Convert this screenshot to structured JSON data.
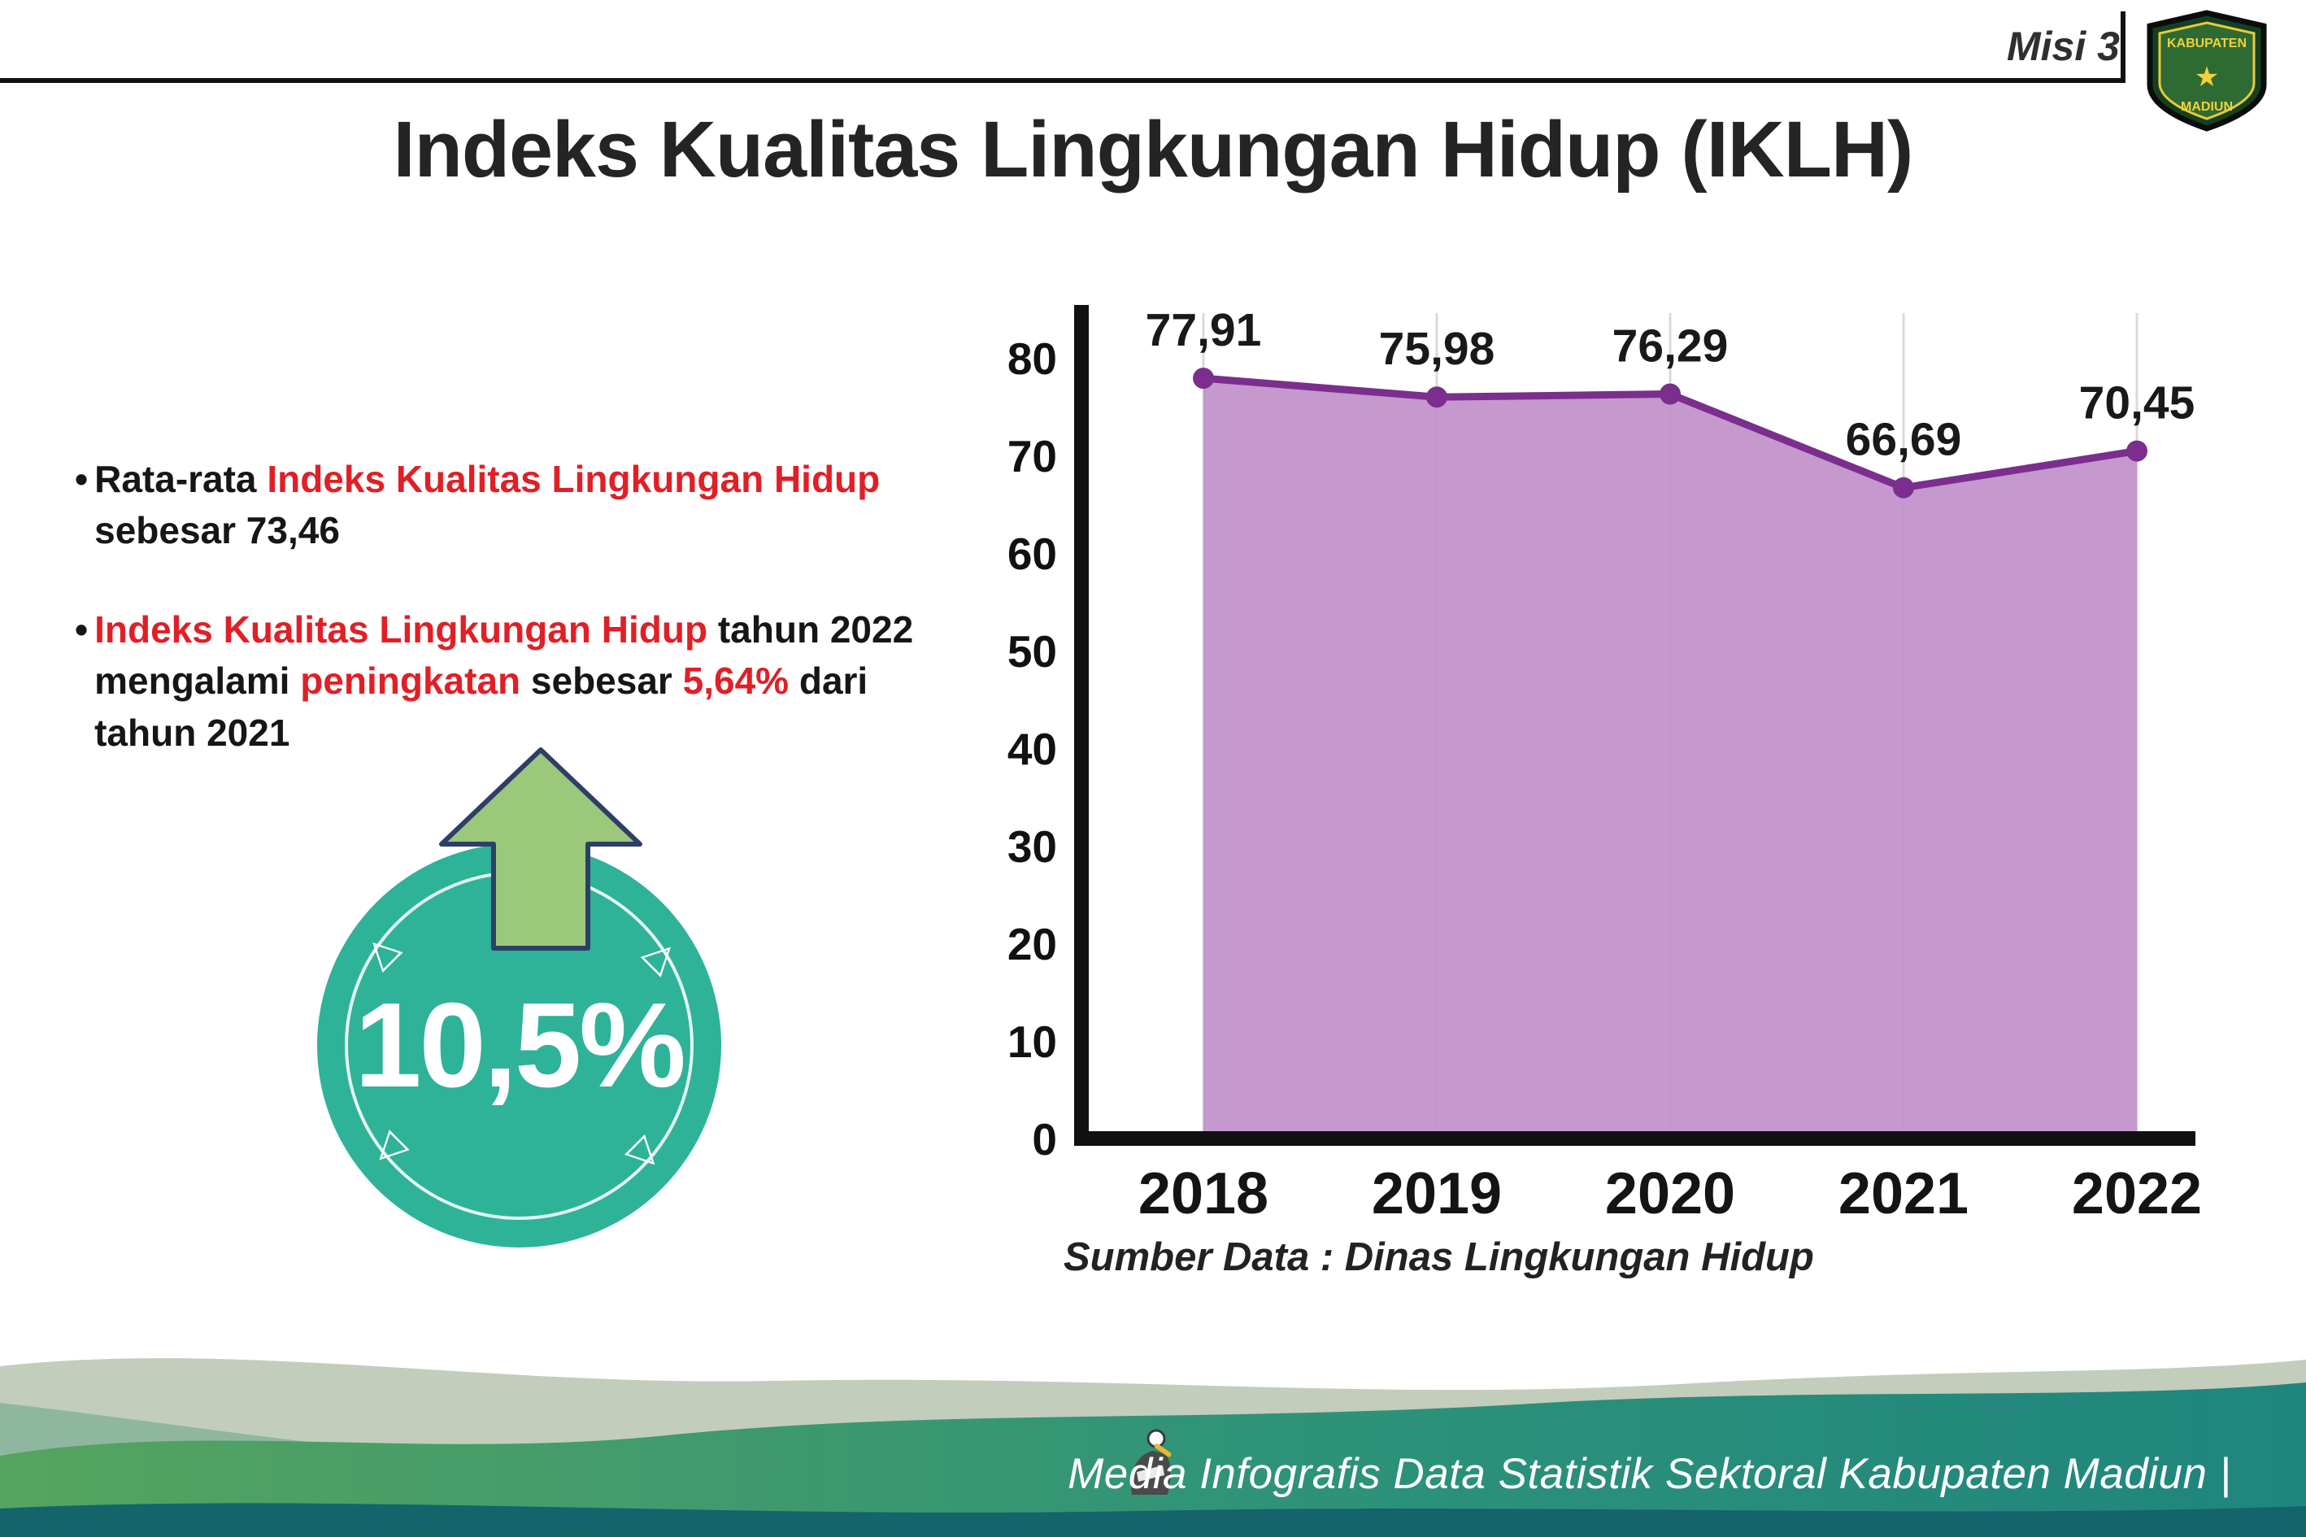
{
  "colors": {
    "red": "#e11f26",
    "ink": "#1d1d1d",
    "teal_badge": "#2eb398",
    "arrow_green": "#9cc87c",
    "arrow_outline": "#2d3f66",
    "purple_fill": "#c08fca",
    "purple_line": "#7b2e8e",
    "sage": "#c3cdbb",
    "green_left": "#56a45f",
    "teal_right": "#1f857e",
    "dark_teal": "#14646c"
  },
  "header": {
    "misi_label": "Misi 3",
    "title": "Indeks Kualitas Lingkungan Hidup (IKLH)"
  },
  "logo": {
    "top_text": "KABUPATEN",
    "bottom_text": "MADIUN",
    "star_glyph": "★"
  },
  "bullets": {
    "marker": "•",
    "b1": [
      {
        "t": "Rata-rata "
      },
      {
        "t": "Indeks Kualitas Lingkungan Hidup"
      },
      {
        "t": " sebesar 73,46"
      }
    ],
    "b2": [
      {
        "t": "Indeks Kualitas Lingkungan Hidup"
      },
      {
        "t": " tahun 2022 mengalami "
      },
      {
        "t": "peningkatan"
      },
      {
        "t": " sebesar "
      },
      {
        "t": "5,64%"
      },
      {
        "t": " dari tahun 2021"
      }
    ]
  },
  "badge": {
    "value": "10,5%",
    "triangle_glyph": "▷"
  },
  "chart_data": {
    "type": "area",
    "title": "Indeks Kualitas Lingkungan Hidup (IKLH)",
    "categories": [
      "2018",
      "2019",
      "2020",
      "2021",
      "2022"
    ],
    "values": [
      77.91,
      75.98,
      76.29,
      66.69,
      70.45
    ],
    "point_labels": [
      "77,91",
      "75,98",
      "76,29",
      "66,69",
      "70,45"
    ],
    "ylim": [
      0,
      80
    ],
    "ytick_step": 10,
    "grid": true,
    "legend": false,
    "source": "Sumber Data : Dinas Lingkungan Hidup"
  },
  "footer": {
    "text": "Media Infografis Data Statistik Sektoral Kabupaten Madiun |"
  }
}
